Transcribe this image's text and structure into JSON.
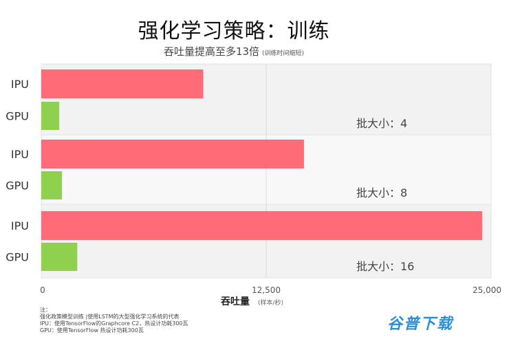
{
  "title": "强化学习策略：训练",
  "subtitle": "吞吐量提高至多13倍",
  "subtitle_note": "(训练时间缩短)",
  "chart_data": {
    "type": "bar",
    "orientation": "horizontal",
    "groups": [
      {
        "label": "批大小：4",
        "bars": [
          {
            "name": "IPU",
            "value": 9000
          },
          {
            "name": "GPU",
            "value": 1000
          }
        ]
      },
      {
        "label": "批大小：8",
        "bars": [
          {
            "name": "IPU",
            "value": 14600
          },
          {
            "name": "GPU",
            "value": 1150
          }
        ]
      },
      {
        "label": "批大小：16",
        "bars": [
          {
            "name": "IPU",
            "value": 24500
          },
          {
            "name": "GPU",
            "value": 2000
          }
        ]
      }
    ],
    "xlabel": "吞吐量",
    "xlabel_unit": "(样本/秒)",
    "xlim": [
      0,
      25000
    ],
    "xticks": [
      "0",
      "12,500",
      "25,000"
    ],
    "gridlines": true,
    "colors": {
      "IPU": "#ff6b76",
      "GPU": "#8fd14f",
      "panel_alt": "#f2f2f2",
      "panel": "#f9f8f8"
    }
  },
  "notes": {
    "heading": "注：",
    "lines": [
      "强化政策模型训练 |使用LSTM的大型强化学习系统的代表",
      "IPU：使用TensorFlow的Graphcore C2，热设计功耗300瓦",
      "GPU：使用TensorFlow 热设计功耗300瓦"
    ]
  },
  "watermark": "谷普下载"
}
